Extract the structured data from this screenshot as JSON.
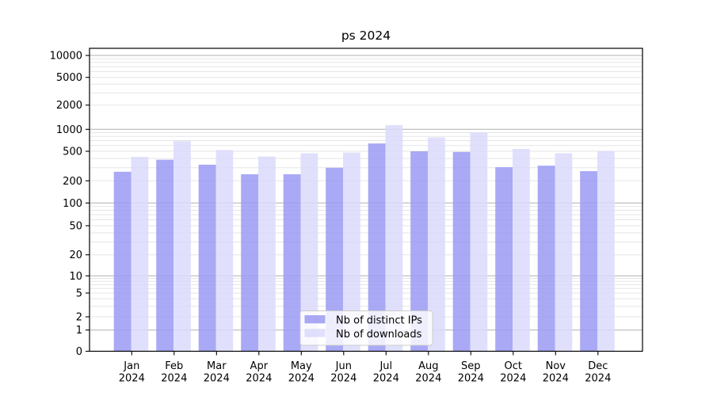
{
  "chart_data": {
    "type": "bar",
    "title": "ps 2024",
    "categories": [
      "Jan 2024",
      "Feb 2024",
      "Mar 2024",
      "Apr 2024",
      "May 2024",
      "Jun 2024",
      "Jul 2024",
      "Aug 2024",
      "Sep 2024",
      "Oct 2024",
      "Nov 2024",
      "Dec 2024"
    ],
    "series": [
      {
        "name": "Nb of distinct IPs",
        "color": "#9a9af3",
        "values": [
          265,
          385,
          330,
          245,
          245,
          300,
          640,
          500,
          490,
          305,
          320,
          270
        ]
      },
      {
        "name": "Nb of downloads",
        "color": "#dadafb",
        "values": [
          420,
          690,
          520,
          425,
          470,
          480,
          1130,
          775,
          910,
          540,
          470,
          505
        ]
      }
    ],
    "yscale": "symlog",
    "yticks": [
      0,
      1,
      2,
      5,
      10,
      20,
      50,
      100,
      200,
      500,
      1000,
      2000,
      5000,
      10000
    ],
    "ylim": [
      0,
      12500
    ],
    "grid": "on",
    "legend_position": "lower center",
    "colors": {
      "major_grid": "#b0b0b0",
      "minor_grid": "#e5e5e5",
      "spine": "#000000",
      "legend_border": "#cccccc"
    }
  }
}
